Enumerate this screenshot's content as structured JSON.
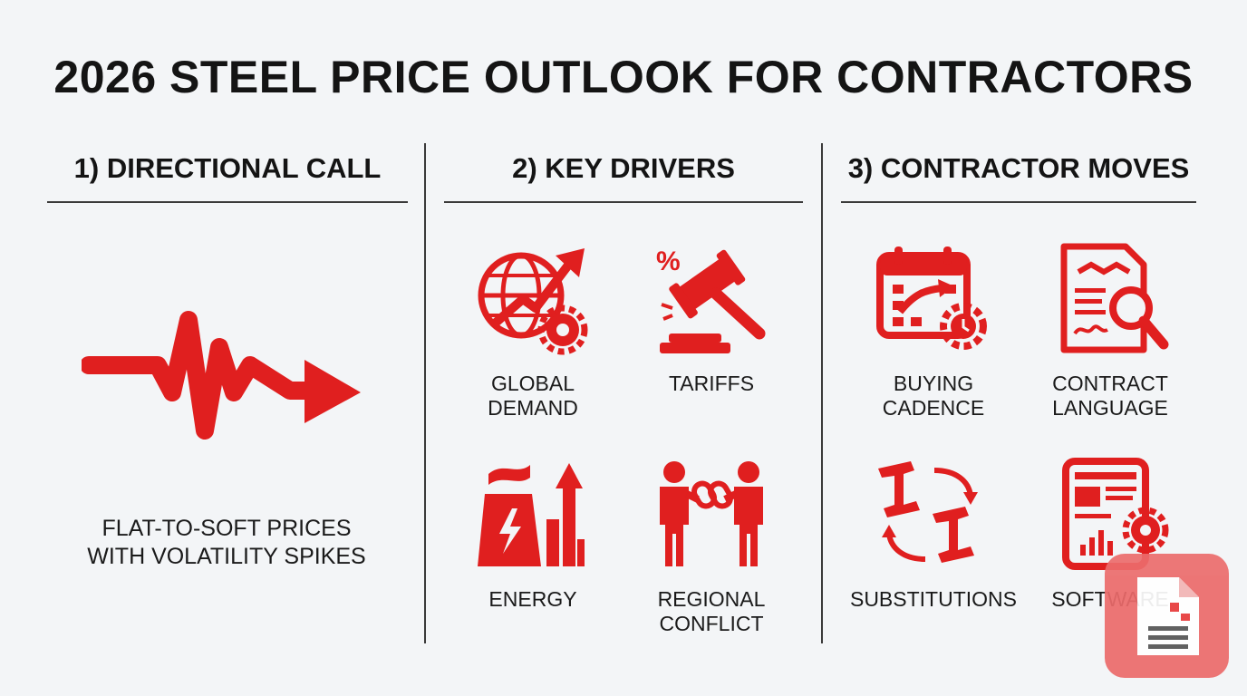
{
  "title": "2026 STEEL PRICE OUTLOOK FOR CONTRACTORS",
  "colors": {
    "accent": "#e01f1f",
    "text": "#141414",
    "background": "#f3f5f7",
    "fab": "#ec6b6b"
  },
  "columns": [
    {
      "heading": "1) DIRECTIONAL CALL"
    },
    {
      "heading": "2) KEY DRIVERS"
    },
    {
      "heading": "3) CONTRACTOR MOVES"
    }
  ],
  "directional": {
    "icon": "volatility-arrow-icon",
    "caption": "FLAT-TO-SOFT PRICES\nWITH VOLATILITY SPIKES"
  },
  "drivers": [
    {
      "icon": "globe-growth-gear-icon",
      "label": "GLOBAL\nDEMAND"
    },
    {
      "icon": "gavel-percent-icon",
      "label": "TARIFFS"
    },
    {
      "icon": "power-plant-arrow-icon",
      "label": "ENERGY"
    },
    {
      "icon": "broken-chain-people-icon",
      "label": "REGIONAL\nCONFLICT"
    }
  ],
  "moves": [
    {
      "icon": "calendar-clock-icon",
      "label": "BUYING\nCADENCE"
    },
    {
      "icon": "contract-magnifier-icon",
      "label": "CONTRACT\nLANGUAGE"
    },
    {
      "icon": "steel-beams-swap-icon",
      "label": "SUBSTITUTIONS"
    },
    {
      "icon": "tablet-analytics-icon",
      "label": "SOFTWARE"
    }
  ],
  "overlay": {
    "icon": "document-icon"
  }
}
